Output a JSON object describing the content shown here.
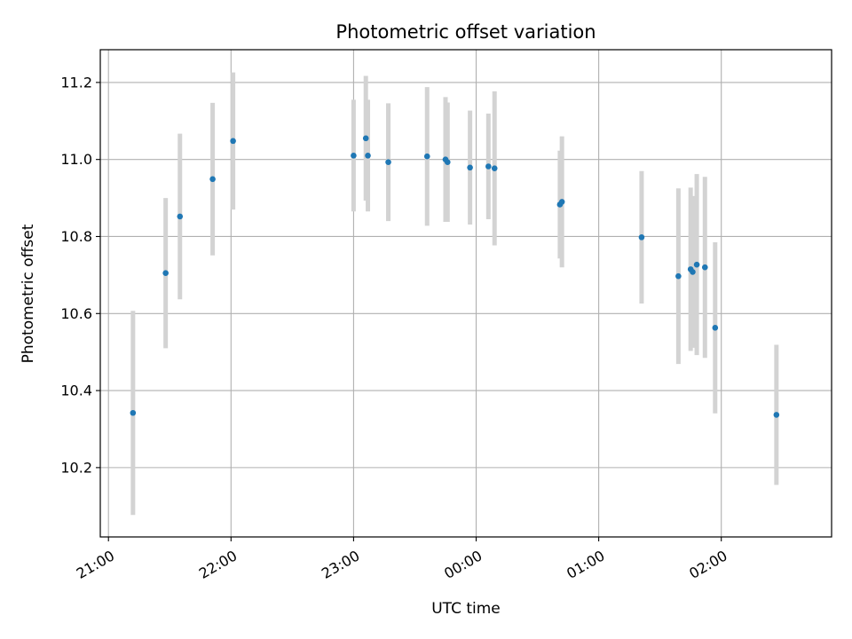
{
  "chart_data": {
    "type": "scatter",
    "title": "Photometric offset variation",
    "xlabel": "UTC time",
    "ylabel": "Photometric offset",
    "grid": true,
    "x_ticks": [
      "21:00",
      "22:00",
      "23:00",
      "00:00",
      "01:00",
      "02:00"
    ],
    "y_ticks": [
      "10.2",
      "10.4",
      "10.6",
      "10.8",
      "11.0",
      "11.2"
    ],
    "x_range": [
      "20:56",
      "02:54"
    ],
    "ylim": [
      10.02,
      11.285
    ],
    "point_color": "#1f77b4",
    "errorbar_color": "#d3d3d3",
    "points": [
      {
        "x": "21:12",
        "y": 10.342,
        "err": 0.265
      },
      {
        "x": "21:28",
        "y": 10.705,
        "err": 0.195
      },
      {
        "x": "21:35",
        "y": 10.852,
        "err": 0.215
      },
      {
        "x": "21:51",
        "y": 10.949,
        "err": 0.198
      },
      {
        "x": "22:01",
        "y": 11.048,
        "err": 0.178
      },
      {
        "x": "23:00",
        "y": 11.01,
        "err": 0.145
      },
      {
        "x": "23:06",
        "y": 11.055,
        "err": 0.162
      },
      {
        "x": "23:07",
        "y": 11.01,
        "err": 0.145
      },
      {
        "x": "23:17",
        "y": 10.993,
        "err": 0.153
      },
      {
        "x": "23:36",
        "y": 11.008,
        "err": 0.18
      },
      {
        "x": "23:45",
        "y": 11.0,
        "err": 0.162
      },
      {
        "x": "23:46",
        "y": 10.993,
        "err": 0.155
      },
      {
        "x": "23:57",
        "y": 10.979,
        "err": 0.148
      },
      {
        "x": "00:06",
        "y": 10.982,
        "err": 0.137
      },
      {
        "x": "00:09",
        "y": 10.977,
        "err": 0.2
      },
      {
        "x": "00:41",
        "y": 10.883,
        "err": 0.14
      },
      {
        "x": "00:42",
        "y": 10.89,
        "err": 0.17
      },
      {
        "x": "01:21",
        "y": 10.798,
        "err": 0.172
      },
      {
        "x": "01:39",
        "y": 10.697,
        "err": 0.228
      },
      {
        "x": "01:45",
        "y": 10.715,
        "err": 0.212
      },
      {
        "x": "01:46",
        "y": 10.708,
        "err": 0.197
      },
      {
        "x": "01:48",
        "y": 10.727,
        "err": 0.235
      },
      {
        "x": "01:52",
        "y": 10.72,
        "err": 0.235
      },
      {
        "x": "01:57",
        "y": 10.563,
        "err": 0.222
      },
      {
        "x": "02:27",
        "y": 10.337,
        "err": 0.182
      }
    ]
  }
}
